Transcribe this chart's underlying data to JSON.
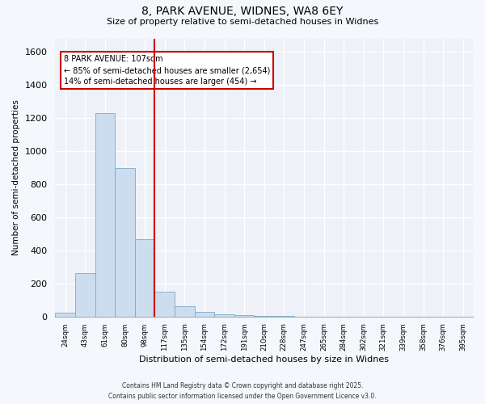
{
  "title1": "8, PARK AVENUE, WIDNES, WA8 6EY",
  "title2": "Size of property relative to semi-detached houses in Widnes",
  "xlabel": "Distribution of semi-detached houses by size in Widnes",
  "ylabel": "Number of semi-detached properties",
  "bins": [
    "24sqm",
    "43sqm",
    "61sqm",
    "80sqm",
    "98sqm",
    "117sqm",
    "135sqm",
    "154sqm",
    "172sqm",
    "191sqm",
    "210sqm",
    "228sqm",
    "247sqm",
    "265sqm",
    "284sqm",
    "302sqm",
    "321sqm",
    "339sqm",
    "358sqm",
    "376sqm",
    "395sqm"
  ],
  "values": [
    25,
    265,
    1230,
    895,
    470,
    150,
    65,
    28,
    15,
    8,
    5,
    3,
    2,
    1,
    1,
    0,
    0,
    0,
    0,
    0,
    0
  ],
  "bar_color": "#ccddef",
  "bar_edge_color": "#7aaac8",
  "vline_color": "#cc0000",
  "annotation_title": "8 PARK AVENUE: 107sqm",
  "annotation_line1": "← 85% of semi-detached houses are smaller (2,654)",
  "annotation_line2": "14% of semi-detached houses are larger (454) →",
  "annotation_box_color": "#cc0000",
  "ylim": [
    0,
    1680
  ],
  "yticks": [
    0,
    200,
    400,
    600,
    800,
    1000,
    1200,
    1400,
    1600
  ],
  "footer1": "Contains HM Land Registry data © Crown copyright and database right 2025.",
  "footer2": "Contains public sector information licensed under the Open Government Licence v3.0.",
  "bg_color": "#f4f7fb",
  "plot_bg_color": "#eef2f8"
}
